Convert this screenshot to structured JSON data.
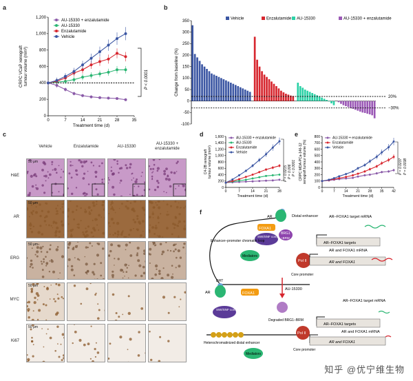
{
  "panels": {
    "a": "a",
    "b": "b",
    "c": "c",
    "d": "d",
    "e": "e",
    "f": "f"
  },
  "chart_data": [
    {
      "id": "a",
      "type": "line",
      "xlabel": "Treatment time (d)",
      "ylabel_line1": "CRPC VCaP xenograft",
      "ylabel_line2": "tumour volume (mm³)",
      "xticks": [
        0,
        7,
        14,
        21,
        28,
        35
      ],
      "yticks": [
        0,
        200,
        400,
        600,
        800,
        1000,
        1200
      ],
      "xlim": [
        0,
        35
      ],
      "ylim": [
        0,
        1200
      ],
      "x": [
        0,
        3.5,
        7,
        10.5,
        14,
        17.5,
        21,
        24.5,
        28,
        31.5
      ],
      "baseline": 400,
      "pvalue": "P < 0.0001",
      "series": [
        {
          "name": "AU-15330 + enzalutamide",
          "color": "#8a5aa8",
          "values": [
            400,
            370,
            320,
            270,
            245,
            230,
            220,
            215,
            210,
            195
          ]
        },
        {
          "name": "AU-15330",
          "color": "#2bb673",
          "values": [
            400,
            410,
            420,
            440,
            470,
            490,
            510,
            530,
            560,
            560
          ]
        },
        {
          "name": "Enzalutamide",
          "color": "#d7262e",
          "values": [
            400,
            420,
            460,
            520,
            560,
            620,
            660,
            690,
            760,
            720
          ]
        },
        {
          "name": "Vehicle",
          "color": "#3b56a3",
          "values": [
            400,
            430,
            480,
            540,
            620,
            700,
            780,
            860,
            940,
            1000
          ]
        }
      ]
    },
    {
      "id": "b",
      "type": "bar",
      "ylabel": "Change from baseline (%)",
      "yticks": [
        -100,
        -50,
        0,
        50,
        100,
        150,
        200,
        250,
        300,
        350
      ],
      "ylim": [
        -100,
        350
      ],
      "ref_lines": [
        {
          "value": 20,
          "label": "20%"
        },
        {
          "value": -30,
          "label": "−30%"
        }
      ],
      "series": [
        {
          "name": "Vehicle",
          "color": "#3b56a3",
          "values": [
            330,
            205,
            190,
            175,
            160,
            150,
            140,
            130,
            120,
            115,
            110,
            105,
            100,
            95,
            90,
            85,
            80,
            75,
            70,
            65,
            60,
            55,
            50,
            45,
            40
          ]
        },
        {
          "name": "Enzalutamide",
          "color": "#d7262e",
          "values": [
            280,
            180,
            150,
            130,
            115,
            105,
            95,
            85,
            75,
            65,
            55,
            45,
            38,
            32,
            28,
            24,
            22
          ]
        },
        {
          "name": "AU-15330",
          "color": "#2bd1a6",
          "values": [
            80,
            65,
            58,
            50,
            45,
            40,
            35,
            30,
            25,
            20,
            15,
            10,
            5,
            -2,
            -10,
            -18
          ]
        },
        {
          "name": "AU-15330 + enzalutamide",
          "color": "#9b59b6",
          "values": [
            -5,
            -12,
            -18,
            -22,
            -26,
            -30,
            -34,
            -38,
            -42,
            -46,
            -50,
            -52,
            -55,
            -58,
            -62,
            -75
          ]
        }
      ]
    },
    {
      "id": "d",
      "type": "line",
      "xlabel": "Treatment time (d)",
      "ylabel_line1": "C4-2B xenograft",
      "ylabel_line2": "tumour volume (mm³)",
      "xticks": [
        0,
        7,
        14,
        21,
        28
      ],
      "yticks": [
        0,
        200,
        400,
        600,
        800,
        1000,
        1200,
        1400,
        1600
      ],
      "xlim": [
        0,
        28
      ],
      "ylim": [
        0,
        1600
      ],
      "x": [
        0,
        3.5,
        7,
        10.5,
        14,
        17.5,
        21,
        24.5,
        28
      ],
      "pvalues": [
        "P = 0.0215",
        "P = 0.006",
        "P < 0.0001"
      ],
      "series": [
        {
          "name": "AU-15330 + enzalutamide",
          "color": "#8a5aa8",
          "values": [
            150,
            160,
            170,
            180,
            190,
            200,
            210,
            220,
            240
          ]
        },
        {
          "name": "AU-15330",
          "color": "#2bb673",
          "values": [
            150,
            180,
            210,
            240,
            280,
            320,
            360,
            380,
            400
          ]
        },
        {
          "name": "Enzalutamide",
          "color": "#d7262e",
          "values": [
            150,
            200,
            260,
            330,
            400,
            480,
            560,
            620,
            680
          ]
        },
        {
          "name": "Vehicle",
          "color": "#3b56a3",
          "values": [
            150,
            250,
            380,
            520,
            680,
            860,
            1040,
            1250,
            1450
          ]
        }
      ]
    },
    {
      "id": "e",
      "type": "line",
      "xlabel": "Treatment time (d)",
      "ylabel_line1": "CRPC MDA-PCa-146-12",
      "ylabel_line2": "xenograft tumour volume (%)",
      "xticks": [
        0,
        7,
        14,
        21,
        28,
        35,
        42
      ],
      "yticks": [
        0,
        100,
        200,
        300,
        400,
        500,
        600,
        700,
        800
      ],
      "xlim": [
        0,
        42
      ],
      "ylim": [
        0,
        800
      ],
      "x": [
        0,
        4,
        7,
        10,
        14,
        18,
        21,
        25,
        28,
        32,
        35,
        39,
        42
      ],
      "pvalues": [
        "P = 0.0237",
        "P = 0.0038"
      ],
      "series": [
        {
          "name": "AU-15330 + enzalutamide",
          "color": "#8a5aa8",
          "values": [
            100,
            110,
            120,
            130,
            140,
            150,
            170,
            190,
            200,
            220,
            240,
            250,
            270
          ]
        },
        {
          "name": "Enzalutamide",
          "color": "#d7262e",
          "values": [
            100,
            115,
            130,
            145,
            165,
            190,
            215,
            250,
            285,
            330,
            380,
            430,
            480
          ]
        },
        {
          "name": "Vehicle",
          "color": "#3b56a3",
          "values": [
            100,
            120,
            145,
            175,
            210,
            250,
            300,
            350,
            410,
            480,
            550,
            630,
            720
          ]
        }
      ]
    }
  ],
  "micrographs": {
    "columns": [
      "Vehicle",
      "Enzalutamide",
      "AU-15330",
      "AU-15330 + enzalutamide"
    ],
    "rows": [
      "H&E",
      "AR",
      "ERG",
      "MYC",
      "Ki67"
    ],
    "scale": "50 μm",
    "colors": {
      "he": "#c89ac8",
      "ihc_dark": "#8b5a2b",
      "ihc_light": "#e3d3c8"
    }
  },
  "diagram": {
    "dht": "DHT",
    "ar": "AR",
    "foxa1": "FOXA1",
    "brg1": "BRG1",
    "brm": "~BRM",
    "swisnf": "SWI/SNF complex",
    "distal_enhancer": "Distal enhancer",
    "loop": "Enhancer–promoter chromatin loop",
    "mediators": "Mediators",
    "pol2": "Pol II",
    "core_promoter": "Core promoter",
    "target_mrna": "AR–FOXA1 target mRNA",
    "targets": "AR–FOXA1 targets",
    "ar_foxa1_mrna": "AR and FOXA1 mRNA",
    "ar_and_foxa1": "AR and FOXA1",
    "drug": "AU-15330",
    "degraded": "Degraded BRG1–BRM",
    "hetero": "Heterochromatinized distal enhancer"
  },
  "watermark": "知乎 @优宁维生物"
}
